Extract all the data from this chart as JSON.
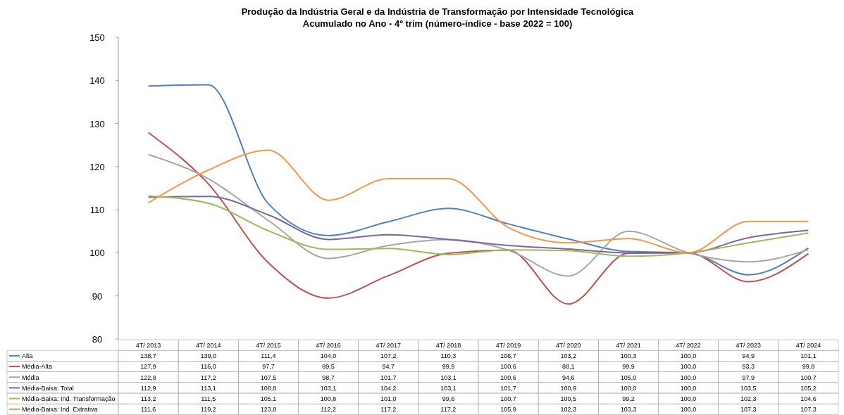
{
  "chart_data": {
    "type": "line",
    "title": "Produção da Indústria Geral e da Indústria de Transformação por Intensidade Tecnológica",
    "subtitle": "Acumulado no Ano - 4º trim (número-índice - base 2022 = 100)",
    "categories": [
      "4T/ 2013",
      "4T/ 2014",
      "4T/ 2015",
      "4T/ 2016",
      "4T/ 2017",
      "4T/ 2018",
      "4T/ 2019",
      "4T/ 2020",
      "4T/ 2021",
      "4T/ 2022",
      "4T/ 2023",
      "4T/ 2024"
    ],
    "series": [
      {
        "name": "Alta",
        "color": "#4f81bd",
        "values": [
          138.7,
          139.0,
          111.4,
          104.0,
          107.2,
          110.3,
          106.7,
          103.2,
          100.3,
          100.0,
          94.9,
          101.1
        ],
        "value_labels": [
          "138,7",
          "139,0",
          "111,4",
          "104,0",
          "107,2",
          "110,3",
          "106,7",
          "103,2",
          "100,3",
          "100,0",
          "94,9",
          "101,1"
        ]
      },
      {
        "name": "Média-Alta",
        "color": "#c0504d",
        "values": [
          127.9,
          116.0,
          97.7,
          89.5,
          94.7,
          99.9,
          100.6,
          88.1,
          99.9,
          100.0,
          93.3,
          99.8
        ],
        "value_labels": [
          "127,9",
          "116,0",
          "97,7",
          "89,5",
          "94,7",
          "99,9",
          "100,6",
          "88,1",
          "99,9",
          "100,0",
          "93,3",
          "99,8"
        ]
      },
      {
        "name": "Média",
        "color": "#a6a6a6",
        "values": [
          122.8,
          117.2,
          107.5,
          98.7,
          101.7,
          103.1,
          100.6,
          94.6,
          105.0,
          100.0,
          97.9,
          100.7
        ],
        "value_labels": [
          "122,8",
          "117,2",
          "107,5",
          "98,7",
          "101,7",
          "103,1",
          "100,6",
          "94,6",
          "105,0",
          "100,0",
          "97,9",
          "100,7"
        ]
      },
      {
        "name": "Média-Baixa: Total",
        "color": "#8064a2",
        "values": [
          112.9,
          113.1,
          108.8,
          103.1,
          104.2,
          103.1,
          101.7,
          100.9,
          100.0,
          100.0,
          103.5,
          105.2
        ],
        "value_labels": [
          "112,9",
          "113,1",
          "108,8",
          "103,1",
          "104,2",
          "103,1",
          "101,7",
          "100,9",
          "100,0",
          "100,0",
          "103,5",
          "105,2"
        ]
      },
      {
        "name": "Média-Baixa: Ind. Transformação",
        "color": "#9bbb59",
        "values": [
          113.2,
          111.5,
          105.1,
          100.8,
          101.0,
          99.6,
          100.7,
          100.5,
          99.2,
          100.0,
          102.3,
          104.6
        ],
        "value_labels": [
          "113,2",
          "111,5",
          "105,1",
          "100,8",
          "101,0",
          "99,6",
          "100,7",
          "100,5",
          "99,2",
          "100,0",
          "102,3",
          "104,6"
        ]
      },
      {
        "name": "Média-Baixa: Ind. Extrativa",
        "color": "#f79646",
        "values": [
          111.6,
          119.2,
          123.8,
          112.2,
          117.2,
          117.2,
          105.9,
          102.3,
          103.3,
          100.0,
          107.3,
          107.3
        ],
        "value_labels": [
          "111,6",
          "119,2",
          "123,8",
          "112,2",
          "117,2",
          "117,2",
          "105,9",
          "102,3",
          "103,3",
          "100,0",
          "107,3",
          "107,3"
        ]
      }
    ],
    "ylim": [
      80,
      150
    ],
    "yticks": [
      80,
      90,
      100,
      110,
      120,
      130,
      140,
      150
    ],
    "legend": "bottom"
  }
}
